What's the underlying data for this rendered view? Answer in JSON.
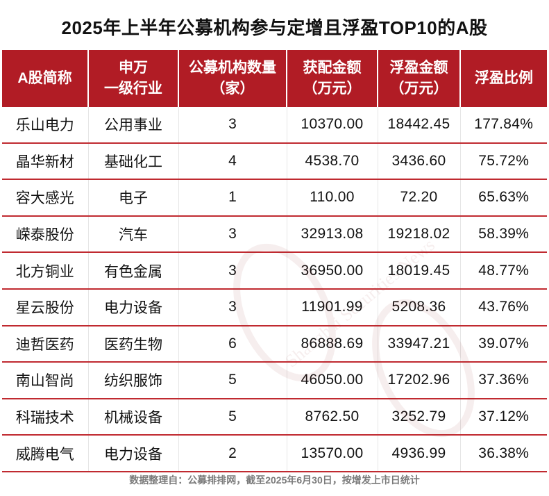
{
  "title": "2025年上半年公募机构参与定增且浮盈TOP10的A股",
  "header_color": "#b11c25",
  "line_color": "#c02a30",
  "headers": [
    {
      "line1": "A股简称",
      "line2": ""
    },
    {
      "line1": "申万",
      "line2": "一级行业"
    },
    {
      "line1": "公募机构数量",
      "line2": "（家）"
    },
    {
      "line1": "获配金额",
      "line2": "（万元）"
    },
    {
      "line1": "浮盈金额",
      "line2": "（万元）"
    },
    {
      "line1": "浮盈比例",
      "line2": ""
    }
  ],
  "rows": [
    {
      "name": "乐山电力",
      "industry": "公用事业",
      "count": "3",
      "allot": "10370.00",
      "profit": "18442.45",
      "ratio": "177.84%"
    },
    {
      "name": "晶华新材",
      "industry": "基础化工",
      "count": "4",
      "allot": "4538.70",
      "profit": "3436.60",
      "ratio": "75.72%"
    },
    {
      "name": "容大感光",
      "industry": "电子",
      "count": "1",
      "allot": "110.00",
      "profit": "72.20",
      "ratio": "65.63%"
    },
    {
      "name": "嵘泰股份",
      "industry": "汽车",
      "count": "3",
      "allot": "32913.08",
      "profit": "19218.02",
      "ratio": "58.39%"
    },
    {
      "name": "北方铜业",
      "industry": "有色金属",
      "count": "3",
      "allot": "36950.00",
      "profit": "18019.45",
      "ratio": "48.77%"
    },
    {
      "name": "星云股份",
      "industry": "电力设备",
      "count": "3",
      "allot": "11901.99",
      "profit": "5208.36",
      "ratio": "43.76%"
    },
    {
      "name": "迪哲医药",
      "industry": "医药生物",
      "count": "6",
      "allot": "86888.69",
      "profit": "33947.21",
      "ratio": "39.07%"
    },
    {
      "name": "南山智尚",
      "industry": "纺织服饰",
      "count": "5",
      "allot": "46050.00",
      "profit": "17202.96",
      "ratio": "37.36%"
    },
    {
      "name": "科瑞技术",
      "industry": "机械设备",
      "count": "5",
      "allot": "8762.50",
      "profit": "3252.79",
      "ratio": "37.12%"
    },
    {
      "name": "威腾电气",
      "industry": "电力设备",
      "count": "2",
      "allot": "13570.00",
      "profit": "4936.99",
      "ratio": "36.38%"
    }
  ],
  "footnote": "数据整理自：公募排排网，截至2025年6月30日，按增发上市日统计",
  "watermark": {
    "text": "Shanghai Securities News",
    "icon": "seal-watermark-icon"
  }
}
